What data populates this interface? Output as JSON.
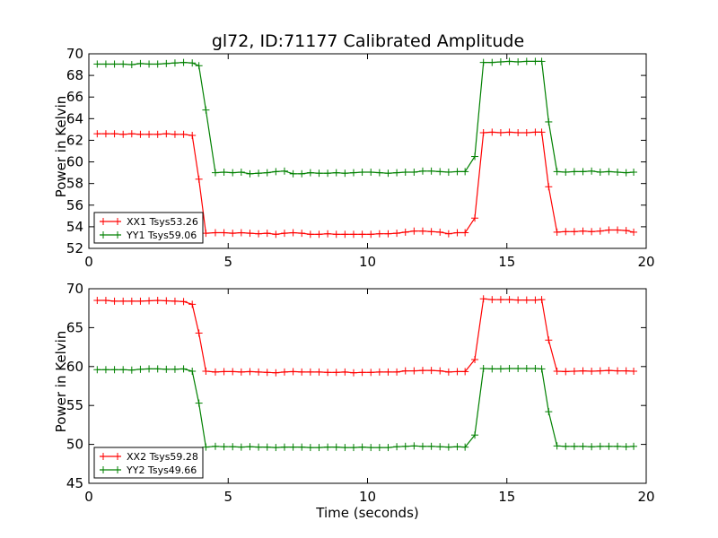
{
  "figure": {
    "title": "gl72, ID:71177 Calibrated Amplitude"
  },
  "chart_data": [
    {
      "type": "line",
      "title": "gl72, ID:71177 Calibrated Amplitude",
      "xlabel": "",
      "ylabel": "Power in Kelvin",
      "xlim": [
        0,
        20
      ],
      "ylim": [
        52,
        70
      ],
      "xticks": [
        "0",
        "5",
        "10",
        "15",
        "20"
      ],
      "yticks": [
        "52",
        "54",
        "56",
        "58",
        "60",
        "62",
        "64",
        "66",
        "68",
        "70"
      ],
      "legend_position": "lower-left",
      "grid": false,
      "x": [
        0.3,
        0.61,
        0.92,
        1.23,
        1.54,
        1.85,
        2.16,
        2.47,
        2.78,
        3.09,
        3.4,
        3.71,
        3.95,
        4.2,
        4.54,
        4.85,
        5.16,
        5.47,
        5.78,
        6.09,
        6.4,
        6.71,
        7.02,
        7.33,
        7.64,
        7.95,
        8.26,
        8.57,
        8.88,
        9.19,
        9.5,
        9.81,
        10.12,
        10.43,
        10.74,
        11.05,
        11.36,
        11.67,
        11.98,
        12.29,
        12.6,
        12.91,
        13.22,
        13.5,
        13.85,
        14.16,
        14.47,
        14.78,
        15.09,
        15.4,
        15.71,
        16.02,
        16.25,
        16.5,
        16.8,
        17.11,
        17.42,
        17.73,
        18.04,
        18.35,
        18.66,
        18.97,
        19.28,
        19.55
      ],
      "series": [
        {
          "name": "XX1 Tsys53.26",
          "color": "#ff0000",
          "values": [
            62.6,
            62.6,
            62.6,
            62.55,
            62.6,
            62.55,
            62.55,
            62.55,
            62.6,
            62.55,
            62.55,
            62.45,
            58.4,
            53.4,
            53.45,
            53.45,
            53.4,
            53.45,
            53.4,
            53.35,
            53.4,
            53.3,
            53.4,
            53.45,
            53.4,
            53.3,
            53.3,
            53.35,
            53.3,
            53.3,
            53.3,
            53.3,
            53.3,
            53.35,
            53.35,
            53.4,
            53.5,
            53.6,
            53.6,
            53.55,
            53.5,
            53.35,
            53.45,
            53.45,
            54.8,
            62.7,
            62.75,
            62.7,
            62.75,
            62.7,
            62.7,
            62.75,
            62.75,
            57.7,
            53.5,
            53.55,
            53.55,
            53.6,
            53.55,
            53.6,
            53.7,
            53.7,
            53.65,
            53.5
          ]
        },
        {
          "name": "YY1 Tsys59.06",
          "color": "#008000",
          "values": [
            69.05,
            69.05,
            69.05,
            69.05,
            69.0,
            69.1,
            69.05,
            69.05,
            69.1,
            69.15,
            69.2,
            69.15,
            68.9,
            64.8,
            59.0,
            59.05,
            59.0,
            59.05,
            58.9,
            58.95,
            59.0,
            59.1,
            59.15,
            58.9,
            58.9,
            59.0,
            58.95,
            58.95,
            59.0,
            58.95,
            59.0,
            59.05,
            59.05,
            59.0,
            58.95,
            59.0,
            59.05,
            59.05,
            59.15,
            59.15,
            59.1,
            59.05,
            59.1,
            59.1,
            60.5,
            69.2,
            69.2,
            69.25,
            69.3,
            69.25,
            69.3,
            69.3,
            69.3,
            63.7,
            59.1,
            59.05,
            59.1,
            59.1,
            59.15,
            59.05,
            59.1,
            59.05,
            59.0,
            59.05
          ]
        }
      ]
    },
    {
      "type": "line",
      "title": "",
      "xlabel": "Time (seconds)",
      "ylabel": "Power in Kelvin",
      "xlim": [
        0,
        20
      ],
      "ylim": [
        45,
        70
      ],
      "xticks": [
        "0",
        "5",
        "10",
        "15",
        "20"
      ],
      "yticks": [
        "45",
        "50",
        "55",
        "60",
        "65",
        "70"
      ],
      "legend_position": "lower-left",
      "grid": false,
      "x": [
        0.3,
        0.61,
        0.92,
        1.23,
        1.54,
        1.85,
        2.16,
        2.47,
        2.78,
        3.09,
        3.4,
        3.71,
        3.95,
        4.2,
        4.54,
        4.85,
        5.16,
        5.47,
        5.78,
        6.09,
        6.4,
        6.71,
        7.02,
        7.33,
        7.64,
        7.95,
        8.26,
        8.57,
        8.88,
        9.19,
        9.5,
        9.81,
        10.12,
        10.43,
        10.74,
        11.05,
        11.36,
        11.67,
        11.98,
        12.29,
        12.6,
        12.91,
        13.22,
        13.5,
        13.85,
        14.16,
        14.47,
        14.78,
        15.09,
        15.4,
        15.71,
        16.02,
        16.25,
        16.5,
        16.8,
        17.11,
        17.42,
        17.73,
        18.04,
        18.35,
        18.66,
        18.97,
        19.28,
        19.55
      ],
      "series": [
        {
          "name": "XX2 Tsys59.28",
          "color": "#ff0000",
          "values": [
            68.5,
            68.5,
            68.4,
            68.4,
            68.4,
            68.4,
            68.45,
            68.5,
            68.45,
            68.4,
            68.35,
            68.0,
            64.3,
            59.4,
            59.3,
            59.35,
            59.35,
            59.3,
            59.35,
            59.3,
            59.25,
            59.2,
            59.3,
            59.35,
            59.3,
            59.3,
            59.3,
            59.25,
            59.25,
            59.3,
            59.2,
            59.25,
            59.25,
            59.3,
            59.3,
            59.3,
            59.45,
            59.45,
            59.5,
            59.5,
            59.45,
            59.3,
            59.35,
            59.35,
            60.9,
            68.7,
            68.6,
            68.6,
            68.6,
            68.55,
            68.55,
            68.55,
            68.6,
            63.4,
            59.4,
            59.35,
            59.4,
            59.45,
            59.4,
            59.45,
            59.5,
            59.45,
            59.45,
            59.4
          ]
        },
        {
          "name": "YY2 Tsys49.66",
          "color": "#008000",
          "values": [
            59.6,
            59.6,
            59.6,
            59.6,
            59.55,
            59.65,
            59.7,
            59.7,
            59.65,
            59.65,
            59.7,
            59.4,
            55.3,
            49.65,
            49.75,
            49.7,
            49.7,
            49.65,
            49.7,
            49.65,
            49.65,
            49.6,
            49.65,
            49.65,
            49.65,
            49.6,
            49.6,
            49.65,
            49.65,
            49.6,
            49.6,
            49.65,
            49.6,
            49.6,
            49.6,
            49.7,
            49.75,
            49.8,
            49.75,
            49.75,
            49.7,
            49.65,
            49.7,
            49.65,
            51.2,
            59.75,
            59.7,
            59.7,
            59.75,
            59.75,
            59.75,
            59.75,
            59.7,
            54.2,
            49.8,
            49.75,
            49.75,
            49.75,
            49.7,
            49.75,
            49.75,
            49.75,
            49.7,
            49.75
          ]
        }
      ]
    }
  ]
}
